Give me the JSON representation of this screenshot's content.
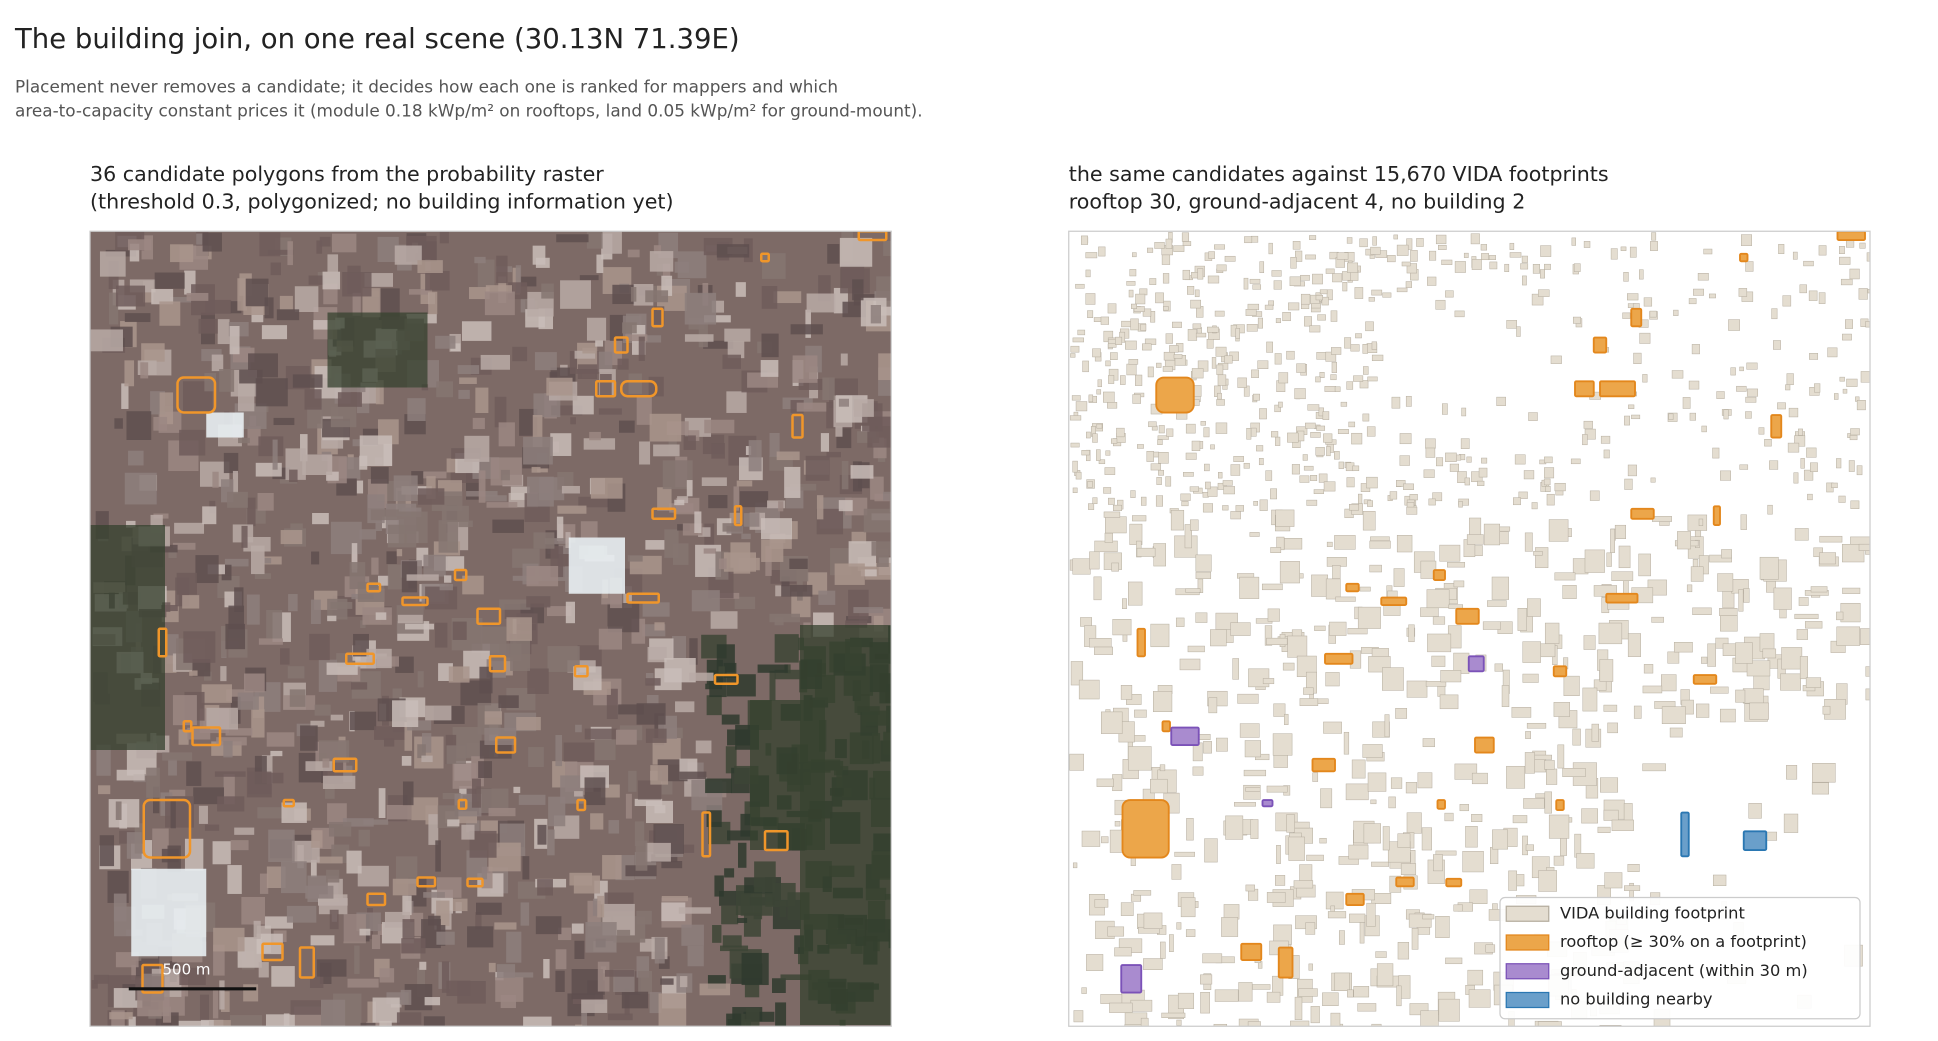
{
  "title": "The building join, on one real scene (30.13N 71.39E)",
  "subtitle": [
    "Placement never removes a candidate; it decides how each one is ranked for mappers and which",
    "area-to-capacity constant prices it (module 0.18 kWp/m² on rooftops, land 0.05 kWp/m² for ground-mount)."
  ],
  "panels": [
    {
      "title": [
        "36 candidate polygons from the probability raster",
        "(threshold 0.3, polygonized; no building information yet)"
      ],
      "scale_bar": "500 m"
    },
    {
      "title": [
        "the same candidates against 15,670 VIDA footprints",
        "rooftop 30, ground-adjacent 4, no building 2"
      ],
      "legend": [
        {
          "label": "VIDA building footprint",
          "color": "#e4ddd0",
          "edge": "#b5ad9f"
        },
        {
          "label": "rooftop (≥ 30% on a footprint)",
          "color": "#eca64a",
          "edge": "#e3871c"
        },
        {
          "label": "ground-adjacent (within 30 m)",
          "color": "#a98bcf",
          "edge": "#7b52b8"
        },
        {
          "label": "no building nearby",
          "color": "#6a9fca",
          "edge": "#2a77b2"
        }
      ]
    }
  ]
}
